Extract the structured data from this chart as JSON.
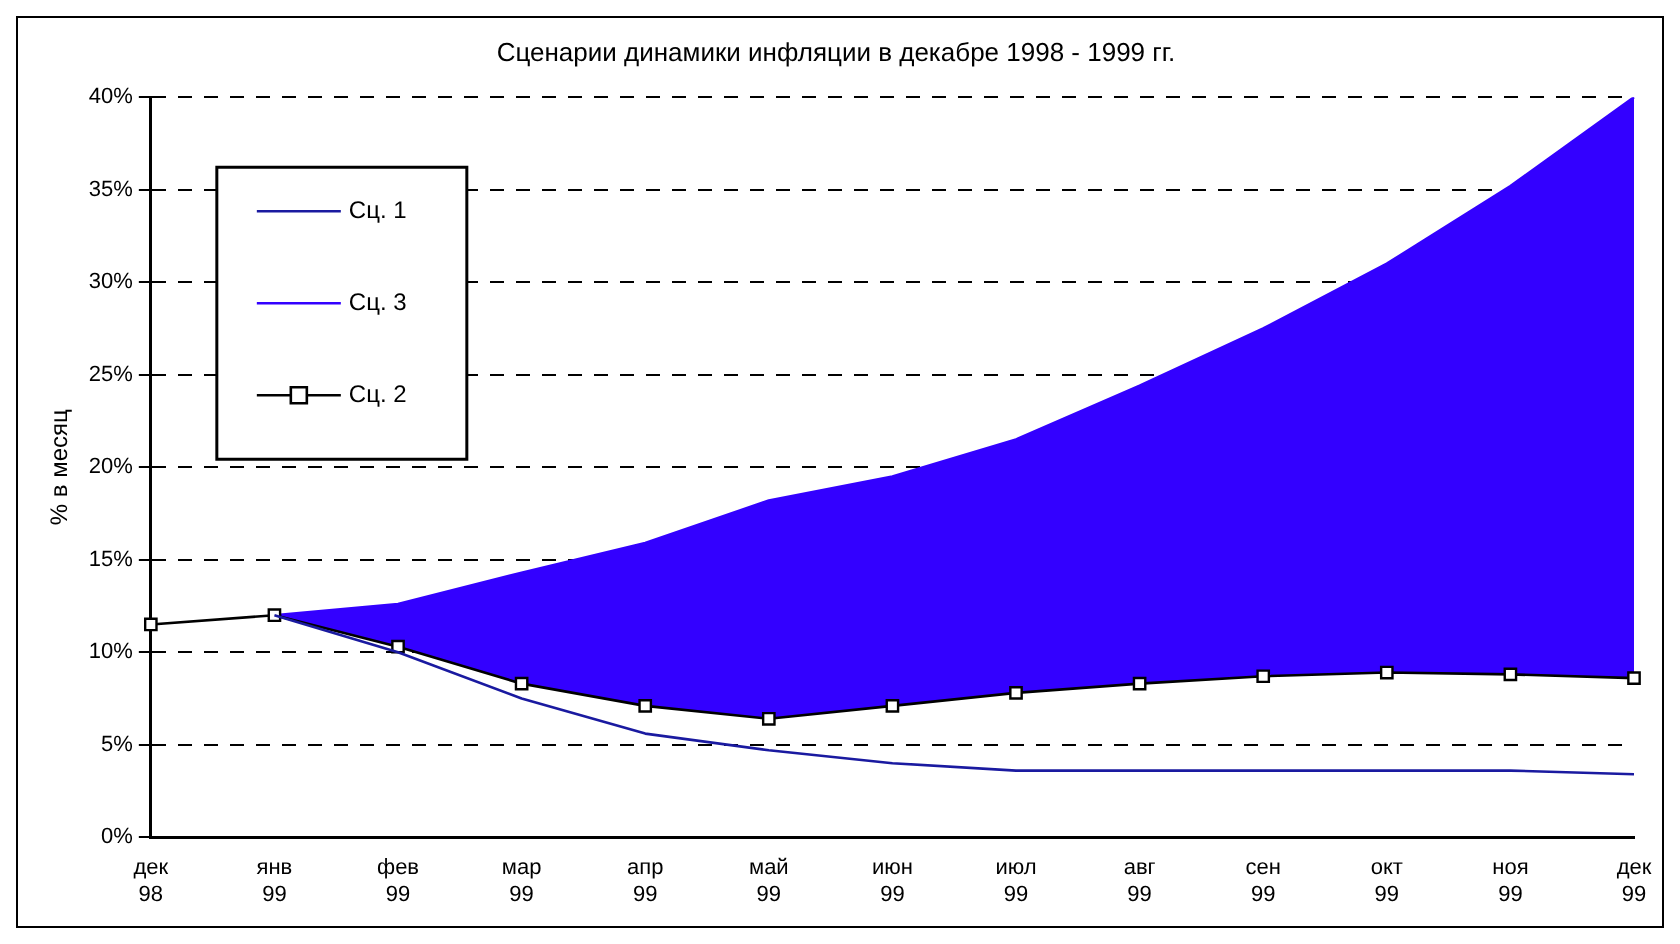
{
  "chart_data": {
    "type": "line",
    "title": "Сценарии динамики инфляции в декабре 1998 - 1999 гг.",
    "ylabel": "% в месяц",
    "categories": [
      "дек 98",
      "янв 99",
      "фев 99",
      "мар 99",
      "апр 99",
      "май 99",
      "июн 99",
      "июл 99",
      "авг 99",
      "сен 99",
      "окт 99",
      "ноя 99",
      "дек 99"
    ],
    "series": [
      {
        "name": "Сц. 1",
        "color": "#1a1aa0",
        "values": [
          null,
          12,
          10,
          7.5,
          5.6,
          4.7,
          4.0,
          3.6,
          3.6,
          3.6,
          3.6,
          3.6,
          3.4
        ]
      },
      {
        "name": "Сц. 3",
        "type": "area",
        "color": "#3300ff",
        "values": [
          null,
          12,
          12.6,
          14.3,
          15.9,
          18.2,
          19.5,
          21.5,
          24.4,
          27.5,
          31,
          35.2,
          40
        ]
      },
      {
        "name": "Сц. 2",
        "color": "#000000",
        "marker": "square",
        "values": [
          11.5,
          12,
          10.3,
          8.3,
          7.1,
          6.4,
          7.1,
          7.8,
          8.3,
          8.7,
          8.9,
          8.8,
          8.6
        ]
      }
    ],
    "ylim": [
      0,
      40
    ],
    "yticks": [
      {
        "value": 0,
        "label": "0%"
      },
      {
        "value": 5,
        "label": "5%"
      },
      {
        "value": 10,
        "label": "10%"
      },
      {
        "value": 15,
        "label": "15%"
      },
      {
        "value": 20,
        "label": "20%"
      },
      {
        "value": 25,
        "label": "25%"
      },
      {
        "value": 30,
        "label": "30%"
      },
      {
        "value": 35,
        "label": "35%"
      },
      {
        "value": 40,
        "label": "40%"
      }
    ],
    "grid": "y",
    "legend": "top left",
    "marker": "none",
    "line_style": "solid"
  }
}
